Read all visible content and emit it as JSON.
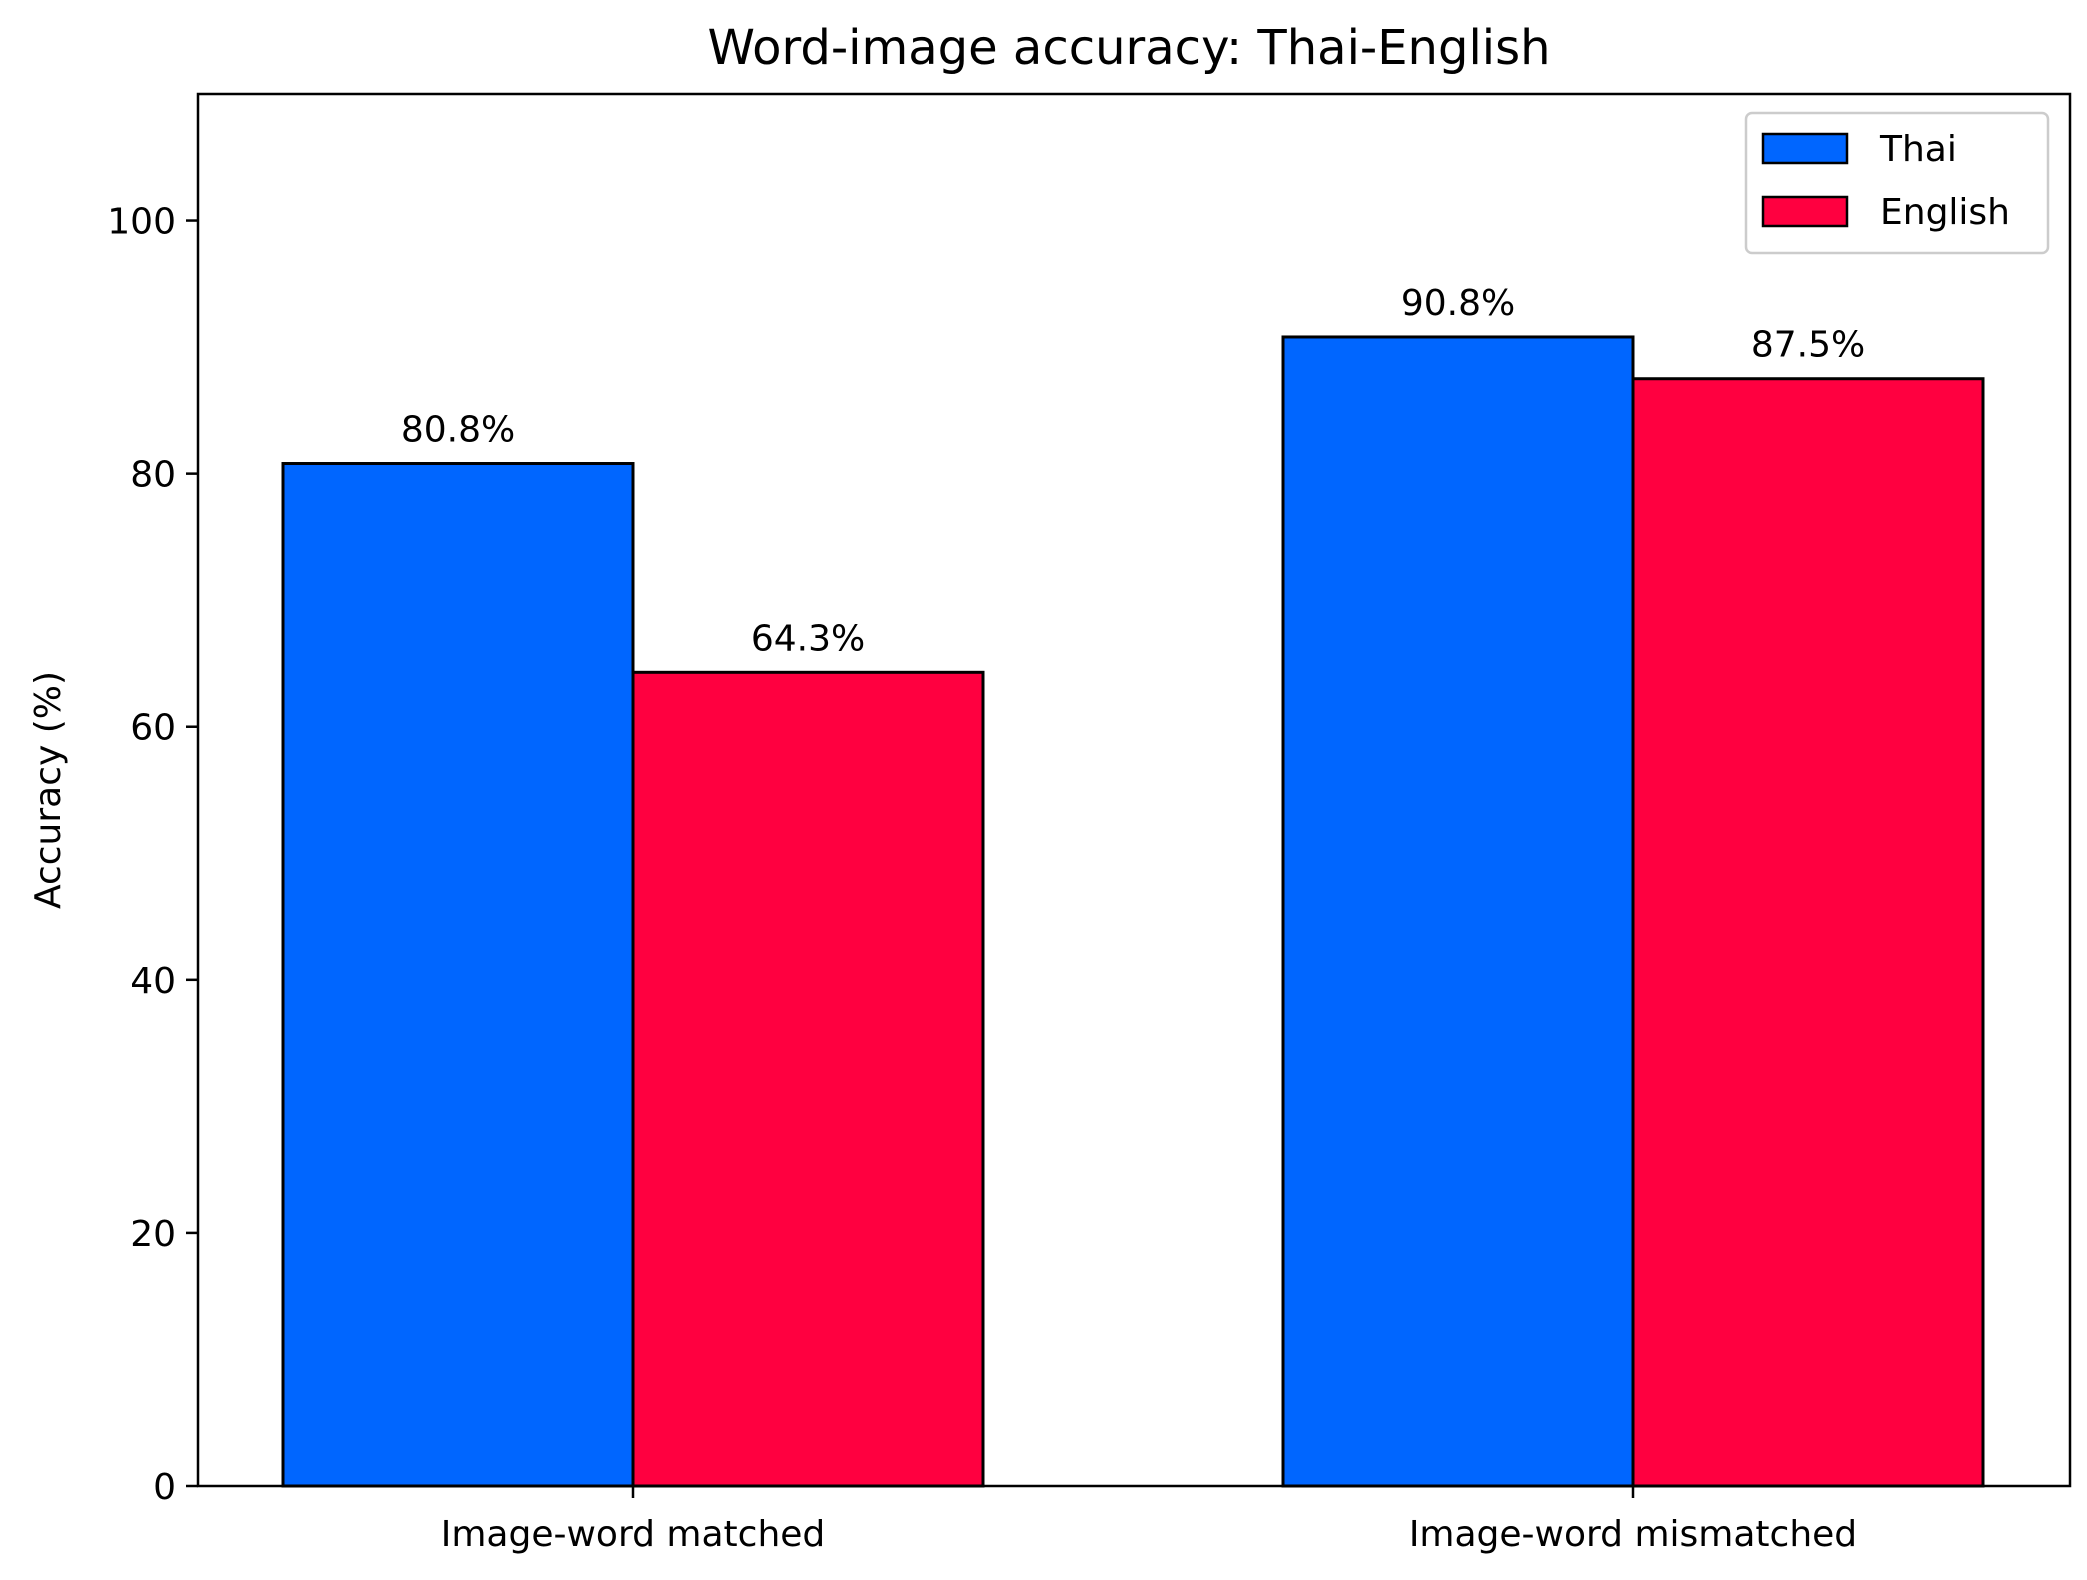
{
  "chart_data": {
    "type": "bar",
    "title": "Word-image accuracy: Thai-English",
    "xlabel": "",
    "ylabel": "Accuracy (%)",
    "categories": [
      "Image-word matched",
      "Image-word mismatched"
    ],
    "series": [
      {
        "name": "Thai",
        "color": "#0066ff",
        "values": [
          80.8,
          90.8
        ],
        "labels": [
          "80.8%",
          "90.8%"
        ]
      },
      {
        "name": "English",
        "color": "#ff0040",
        "values": [
          64.3,
          87.5
        ],
        "labels": [
          "64.3%",
          "87.5%"
        ]
      }
    ],
    "ylim": [
      0,
      110
    ],
    "yticks": [
      0,
      20,
      40,
      60,
      80,
      100
    ],
    "ytick_labels": [
      "0",
      "20",
      "40",
      "60",
      "80",
      "100"
    ],
    "grid": false,
    "legend_position": "upper right",
    "edge_color": "#000000"
  }
}
